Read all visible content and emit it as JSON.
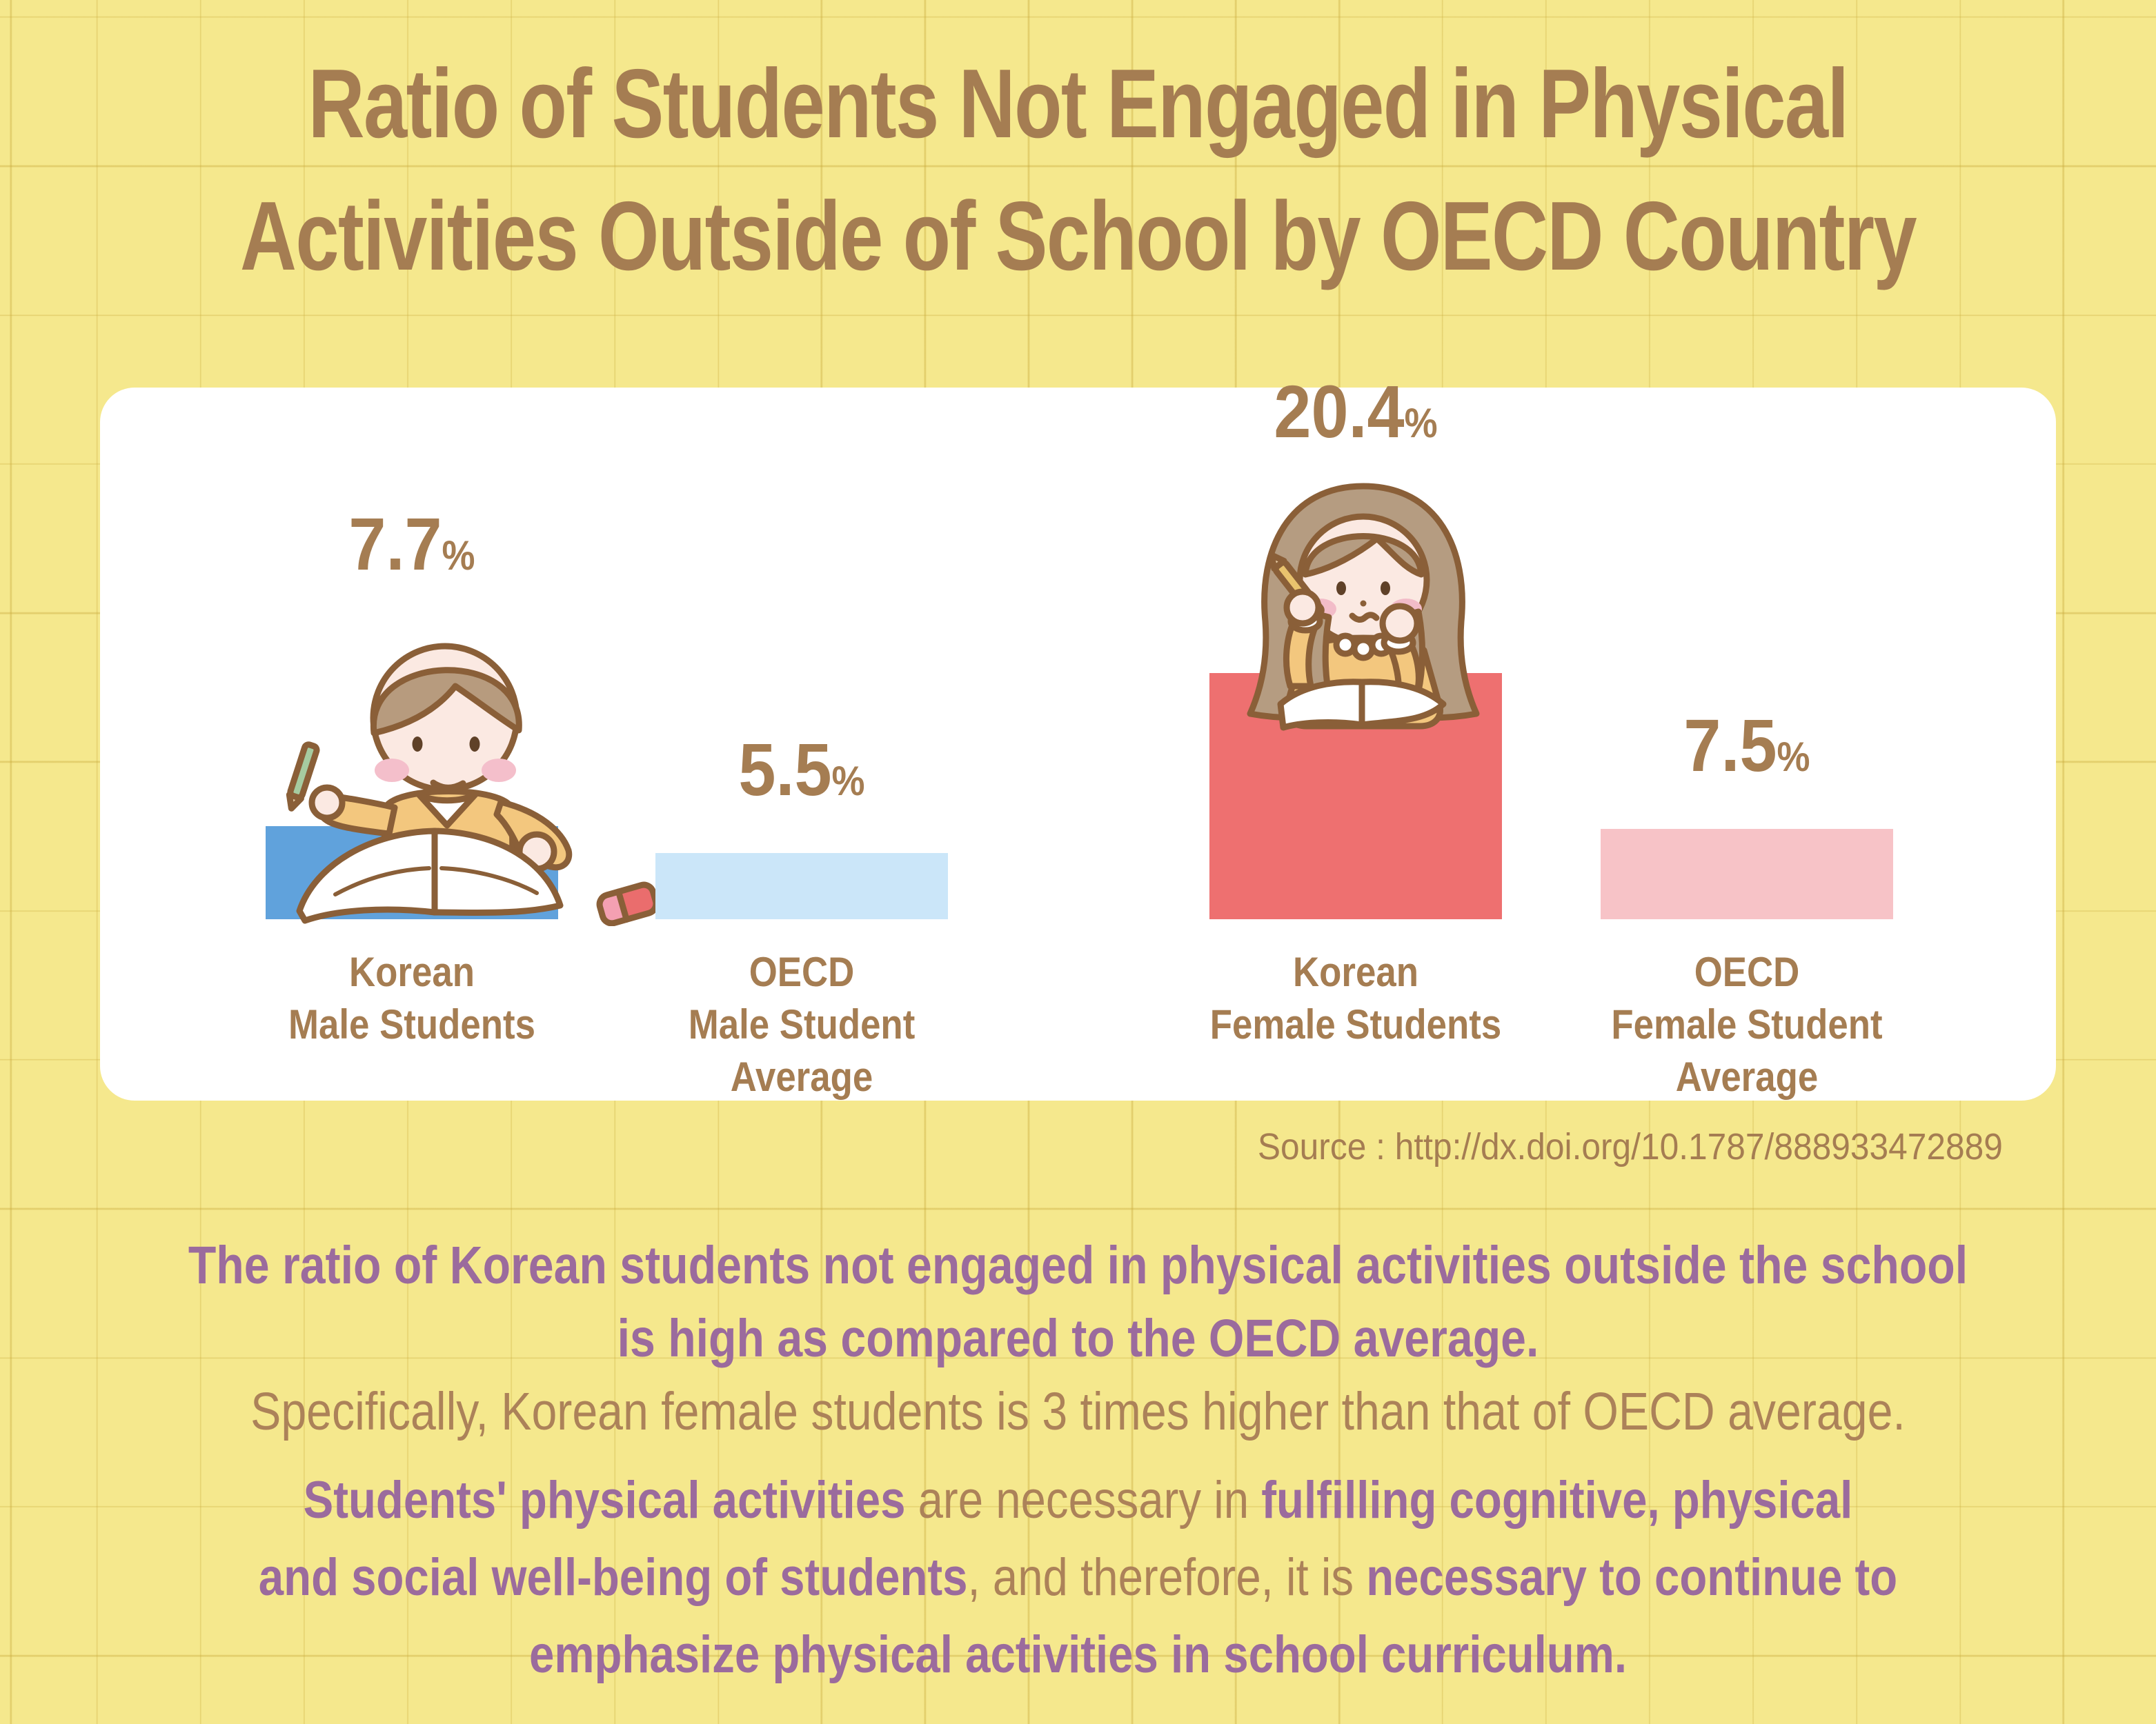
{
  "title": {
    "line1": "Ratio of Students Not Engaged in Physical",
    "line2": "Activities Outside of School by OECD Country"
  },
  "chart_data": {
    "type": "bar",
    "title": "Ratio of Students Not Engaged in Physical Activities Outside of School by OECD Country",
    "categories": [
      "Korean Male Students",
      "OECD Male Student Average",
      "Korean Female Students",
      "OECD Female Student Average"
    ],
    "values": [
      7.7,
      5.5,
      20.4,
      7.5
    ],
    "unit": "%",
    "bar_colors": [
      "#60A2DC",
      "#CBE6F9",
      "#EE7070",
      "#F7C3C7"
    ],
    "ylim": [
      0,
      22
    ],
    "grid": false,
    "legend": "none",
    "value_labels": [
      "7.7%",
      "5.5%",
      "20.4%",
      "7.5%"
    ]
  },
  "bar_labels": [
    [
      "Korean",
      "Male Students"
    ],
    [
      "OECD",
      "Male Student",
      "Average"
    ],
    [
      "Korean",
      "Female Students"
    ],
    [
      "OECD",
      "Female Student",
      "Average"
    ]
  ],
  "source": "Source : http://dx.doi.org/10.1787/888933472889",
  "p1": {
    "line1": "The ratio of Korean students not engaged in physical activities outside the school",
    "line2": "is high as compared to the OECD average.",
    "line3": "Specifically, Korean female students is 3 times higher than that of OECD average."
  },
  "p2": {
    "l1s1": "Students' physical activities",
    "l1s2": " are necessary in ",
    "l1s3": "fulfilling cognitive, physical",
    "l2s1": "and social well-being of students",
    "l2s2": ", and therefore, it is ",
    "l2s3": "necessary to continue to",
    "l3s1": "emphasize physical activities in school curriculum."
  },
  "colors": {
    "background": "#F5E88D",
    "grid_line": "#D9C35B",
    "card": "#FFFFFF",
    "title_text": "#A57D52",
    "label_text": "#A57D52",
    "purple_text": "#9B6B9D",
    "brown_text": "#AC8259",
    "bar_korean_male": "#60A2DC",
    "bar_oecd_male": "#CBE6F9",
    "bar_korean_female": "#EE7070",
    "bar_oecd_female": "#F7C3C7",
    "outline_brown": "#8A5F38"
  }
}
